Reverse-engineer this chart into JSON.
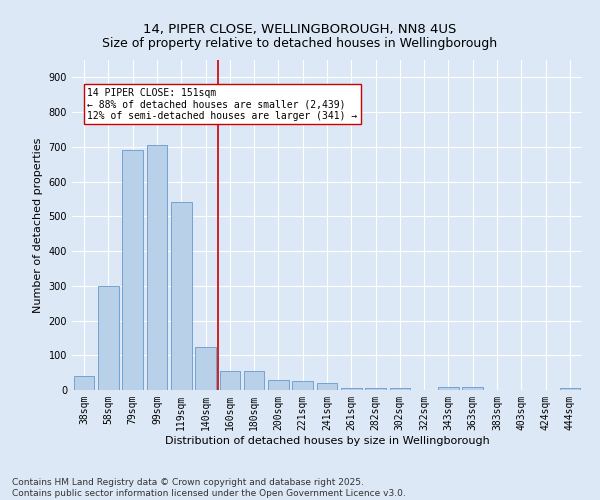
{
  "title": "14, PIPER CLOSE, WELLINGBOROUGH, NN8 4US",
  "subtitle": "Size of property relative to detached houses in Wellingborough",
  "xlabel": "Distribution of detached houses by size in Wellingborough",
  "ylabel": "Number of detached properties",
  "categories": [
    "38sqm",
    "58sqm",
    "79sqm",
    "99sqm",
    "119sqm",
    "140sqm",
    "160sqm",
    "180sqm",
    "200sqm",
    "221sqm",
    "241sqm",
    "261sqm",
    "282sqm",
    "302sqm",
    "322sqm",
    "343sqm",
    "363sqm",
    "383sqm",
    "403sqm",
    "424sqm",
    "444sqm"
  ],
  "values": [
    40,
    300,
    690,
    705,
    540,
    125,
    55,
    55,
    30,
    25,
    20,
    5,
    5,
    5,
    0,
    10,
    10,
    0,
    0,
    0,
    5
  ],
  "bar_color": "#b8d0e8",
  "bar_edge_color": "#6699cc",
  "vline_x_index": 6,
  "vline_color": "#cc0000",
  "annotation_text": "14 PIPER CLOSE: 151sqm\n← 88% of detached houses are smaller (2,439)\n12% of semi-detached houses are larger (341) →",
  "annotation_box_color": "#ffffff",
  "annotation_box_edge": "#cc0000",
  "bg_color": "#dce8f5",
  "plot_bg_color": "#dce8f5",
  "footer": "Contains HM Land Registry data © Crown copyright and database right 2025.\nContains public sector information licensed under the Open Government Licence v3.0.",
  "ylim": [
    0,
    950
  ],
  "yticks": [
    0,
    100,
    200,
    300,
    400,
    500,
    600,
    700,
    800,
    900
  ],
  "title_fontsize": 9.5,
  "axis_label_fontsize": 8,
  "tick_fontsize": 7,
  "footer_fontsize": 6.5,
  "annot_fontsize": 7
}
